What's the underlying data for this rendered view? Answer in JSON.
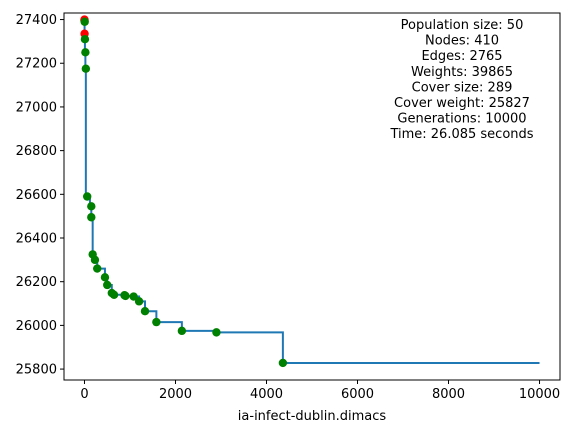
{
  "chart_data": {
    "type": "line",
    "xlabel": "ia-infect-dublin.dimacs",
    "ylabel": "",
    "title": "",
    "xlim": [
      -450,
      10450
    ],
    "ylim": [
      25750,
      27430
    ],
    "xticks": [
      0,
      2000,
      4000,
      6000,
      8000,
      10000
    ],
    "yticks": [
      25800,
      26000,
      26200,
      26400,
      26600,
      26800,
      27000,
      27200,
      27400
    ],
    "grid": false,
    "line_color": "#1f77b4",
    "step_series": {
      "x": [
        0,
        2,
        5,
        10,
        20,
        30,
        60,
        120,
        150,
        180,
        230,
        280,
        450,
        500,
        600,
        650,
        880,
        900,
        1080,
        1200,
        1330,
        1580,
        2140,
        2900,
        4360,
        10000
      ],
      "y": [
        27400,
        27340,
        27310,
        27250,
        27175,
        26590,
        26585,
        26545,
        26495,
        26325,
        26300,
        26260,
        26220,
        26185,
        26148,
        26140,
        26138,
        26135,
        26132,
        26110,
        26065,
        26015,
        25975,
        25968,
        25828,
        25828
      ]
    },
    "red_points": {
      "color": "#ff0000",
      "x": [
        0,
        0,
        2
      ],
      "y": [
        27395,
        27400,
        27335
      ]
    },
    "green_points": {
      "color": "#008000",
      "x": [
        5,
        10,
        20,
        30,
        60,
        150,
        150,
        180,
        230,
        280,
        450,
        500,
        600,
        650,
        880,
        900,
        1080,
        1200,
        1330,
        1580,
        2140,
        2900,
        4360
      ],
      "y": [
        27390,
        27310,
        27250,
        27175,
        26590,
        26545,
        26495,
        26325,
        26300,
        26260,
        26220,
        26185,
        26148,
        26140,
        26138,
        26135,
        26132,
        26110,
        26065,
        26015,
        25975,
        25968,
        25828
      ]
    },
    "annotations": [
      "Population size: 50",
      "Nodes: 410",
      "Edges: 2765",
      "Weights: 39865",
      "Cover size: 289",
      "Cover weight: 25827",
      "Generations: 10000",
      "Time: 26.085 seconds"
    ]
  }
}
